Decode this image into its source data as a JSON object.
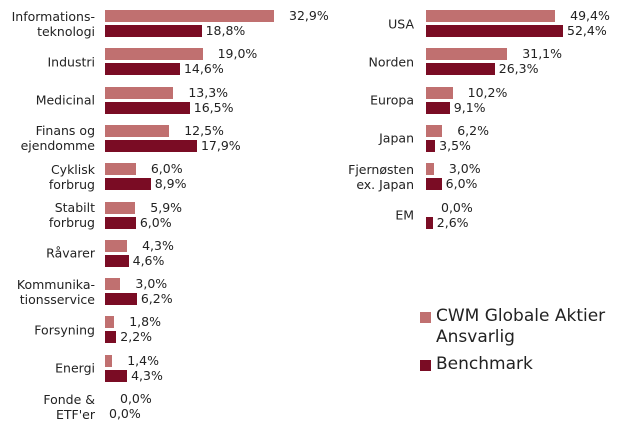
{
  "chart_data": [
    {
      "type": "bar",
      "orientation": "horizontal",
      "categories": [
        "Informations-\nteknologi",
        "Industri",
        "Medicinal",
        "Finans og\nejendomme",
        "Cyklisk\nforbrug",
        "Stabilt\nforbrug",
        "Råvarer",
        "Kommunika-\ntionsservice",
        "Forsyning",
        "Energi",
        "Fonde &\nETF'er"
      ],
      "series": [
        {
          "name": "CWM Globale Aktier Ansvarlig",
          "color": "#c07070",
          "values": [
            32.9,
            19.0,
            13.3,
            12.5,
            6.0,
            5.9,
            4.3,
            3.0,
            1.8,
            1.4,
            0.0
          ],
          "value_labels": [
            "32,9%",
            "19,0%",
            "13,3%",
            "12,5%",
            "6,0%",
            "5,9%",
            "4,3%",
            "3,0%",
            "1,8%",
            "1,4%",
            "0,0%"
          ]
        },
        {
          "name": "Benchmark",
          "color": "#7a0c24",
          "values": [
            18.8,
            14.6,
            16.5,
            17.9,
            8.9,
            6.0,
            4.6,
            6.2,
            2.2,
            4.3,
            0.0
          ],
          "value_labels": [
            "18,8%",
            "14,6%",
            "16,5%",
            "17,9%",
            "8,9%",
            "6,0%",
            "4,6%",
            "6,2%",
            "2,2%",
            "4,3%",
            "0,0%"
          ]
        }
      ]
    },
    {
      "type": "bar",
      "orientation": "horizontal",
      "categories": [
        "USA",
        "Norden",
        "Europa",
        "Japan",
        "Fjernøsten\nex. Japan",
        "EM"
      ],
      "series": [
        {
          "color": "#c07070",
          "values": [
            49.4,
            31.1,
            10.2,
            6.2,
            3.0,
            0.0
          ],
          "value_labels": [
            "49,4%",
            "31,1%",
            "10,2%",
            "6,2%",
            "3,0%",
            "0,0%"
          ]
        },
        {
          "color": "#7a0c24",
          "values": [
            52.4,
            26.3,
            9.1,
            3.5,
            6.0,
            2.6
          ],
          "value_labels": [
            "52,4%",
            "26,3%",
            "9,1%",
            "3,5%",
            "6,0%",
            "2,6%"
          ]
        }
      ]
    }
  ]
}
